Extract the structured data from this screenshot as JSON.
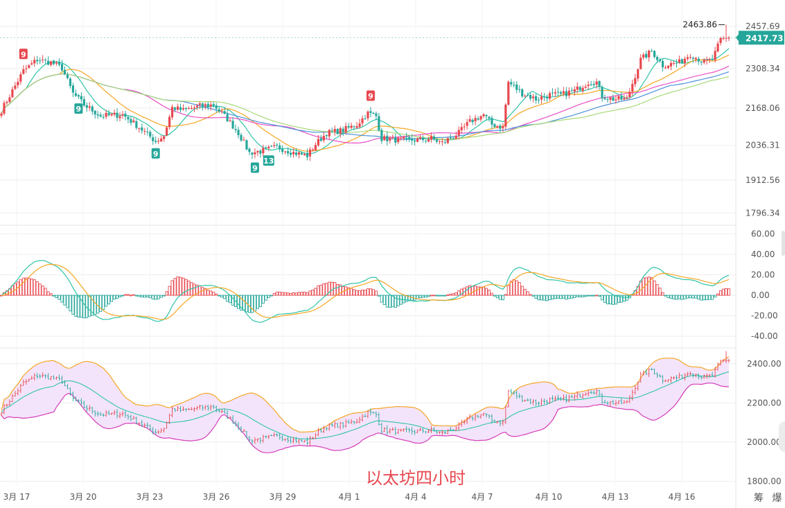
{
  "caption": "以太坊四小时",
  "brand": "筹 爆",
  "price_panel": {
    "y_ticks": [
      "2457.69",
      "2308.34",
      "2168.06",
      "2036.31",
      "1912.56",
      "1796.34"
    ],
    "current_price": "2417.73",
    "high_marker": "2463.86",
    "badges": [
      "9",
      "9",
      "9",
      "9",
      "13",
      "9"
    ]
  },
  "macd_panel": {
    "y_ticks": [
      "60.00",
      "40.00",
      "20.00",
      "0.00",
      "-20.00",
      "-40.00"
    ]
  },
  "boll_panel": {
    "y_ticks": [
      "2400.00",
      "2200.00",
      "2000.00",
      "1800.00"
    ]
  },
  "x_ticks": [
    "3月 17",
    "3月 20",
    "3月 23",
    "3月 26",
    "3月 29",
    "4月 1",
    "4月 4",
    "4月 7",
    "4月 10",
    "4月 13",
    "4月 16"
  ],
  "colors": {
    "up": "#e8484f",
    "down": "#26a69a",
    "price_tag": "#26a69a",
    "ma_teal": "#2ec4a6",
    "ma_orange": "#f5a623",
    "ma_magenta": "#e84fc6",
    "ma_blue": "#4a90d9",
    "ma_lightgreen": "#a8d878",
    "boll_fill": "#f3e4fb",
    "boll_upper": "#f5a623",
    "boll_lower": "#d63bb8",
    "boll_mid": "#2ec4a6",
    "grid": "#eeeeee",
    "axis_text": "#555555"
  },
  "chart_data": [
    {
      "type": "candlestick",
      "title": "",
      "x": [
        "3月 17",
        "3月 20",
        "3月 23",
        "3月 26",
        "3月 29",
        "4月 1",
        "4月 4",
        "4月 7",
        "4月 10",
        "4月 13",
        "4月 16"
      ],
      "close_path": [
        [
          "3月 17",
          2270
        ],
        [
          "3月 18",
          2335
        ],
        [
          "3月 19",
          2325
        ],
        [
          "3月 20",
          2150
        ],
        [
          "3月 21",
          2150
        ],
        [
          "3月 22",
          2140
        ],
        [
          "3月 23",
          2070
        ],
        [
          "3月 24",
          2190
        ],
        [
          "3月 25",
          2180
        ],
        [
          "3月 26",
          2160
        ],
        [
          "3月 27",
          2080
        ],
        [
          "3月 28",
          2000
        ],
        [
          "3月 29",
          2020
        ],
        [
          "3月 30",
          2010
        ],
        [
          "3月 31",
          2090
        ],
        [
          "4月 1",
          2120
        ],
        [
          "4月 2",
          2160
        ],
        [
          "4月 3",
          2070
        ],
        [
          "4月 4",
          2060
        ],
        [
          "4月 5",
          2060
        ],
        [
          "4月 6",
          2090
        ],
        [
          "4月 7",
          2170
        ],
        [
          "4月 8",
          2110
        ],
        [
          "4月 9",
          2240
        ],
        [
          "4月 10",
          2230
        ],
        [
          "4月 11",
          2290
        ],
        [
          "4月 12",
          2250
        ],
        [
          "4月 13",
          2200
        ],
        [
          "4month 14",
          2360
        ],
        [
          "4月 15",
          2340
        ],
        [
          "4月 16",
          2350
        ],
        [
          "4月 17",
          2420
        ]
      ],
      "current": 2417.73,
      "high": 2463.86,
      "ylim": [
        1770,
        2490
      ]
    },
    {
      "type": "bar",
      "title": "",
      "series_desc": "MACD histogram with DIF and DEA lines",
      "ylim": [
        -50,
        65
      ]
    },
    {
      "type": "area",
      "title": "",
      "series_desc": "Bollinger bands around candles",
      "ylim": [
        1780,
        2470
      ]
    }
  ]
}
